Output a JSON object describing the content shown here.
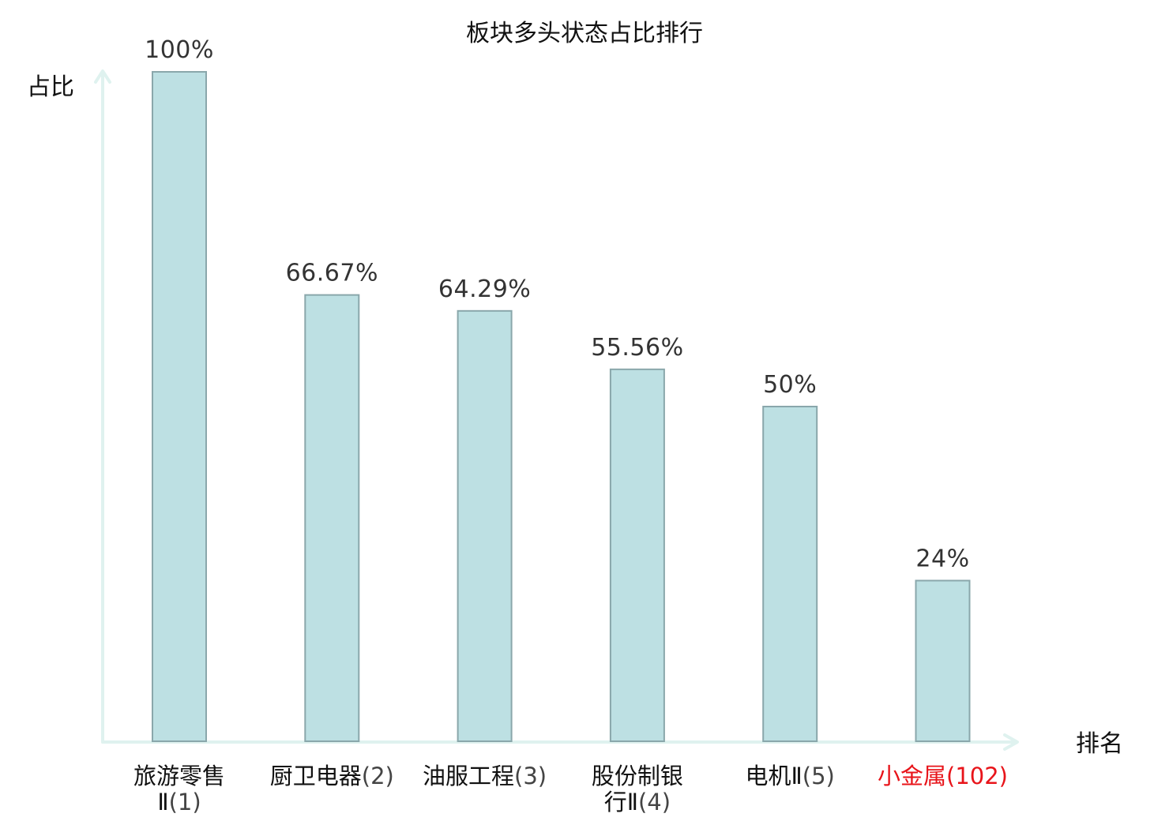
{
  "chart_data": {
    "type": "bar",
    "title": "板块多头状态占比排行",
    "xlabel": "排名",
    "ylabel": "占比",
    "ylim": [
      0,
      100
    ],
    "grid": false,
    "categories": [
      {
        "lines": [
          "旅游零售",
          "Ⅱ"
        ],
        "rank": "(1)",
        "highlight": false
      },
      {
        "lines": [
          "厨卫电器"
        ],
        "rank": "(2)",
        "highlight": false
      },
      {
        "lines": [
          "油服工程"
        ],
        "rank": "(3)",
        "highlight": false
      },
      {
        "lines": [
          "股份制银",
          "行Ⅱ"
        ],
        "rank": "(4)",
        "highlight": false
      },
      {
        "lines": [
          "电机Ⅱ"
        ],
        "rank": "(5)",
        "highlight": false
      },
      {
        "lines": [
          "小金属"
        ],
        "rank": "(102)",
        "highlight": true
      }
    ],
    "values": [
      100,
      66.67,
      64.29,
      55.56,
      50,
      24
    ],
    "value_labels": [
      "100%",
      "66.67%",
      "64.29%",
      "55.56%",
      "50%",
      "24%"
    ],
    "colors": {
      "bar_fill": "#bde0e3",
      "bar_stroke": "#8aa7ab",
      "axis": "#dff2ef",
      "highlight": "#e8141a"
    }
  }
}
